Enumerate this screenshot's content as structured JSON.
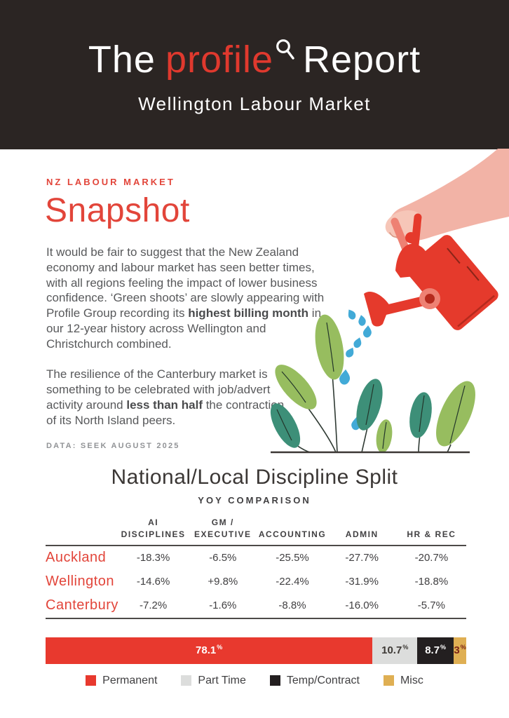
{
  "header": {
    "title_pre": "The",
    "brand": "profile",
    "title_post": "Report",
    "subtitle": "Wellington Labour Market"
  },
  "snapshot": {
    "kicker": "NZ LABOUR MARKET",
    "title": "Snapshot",
    "para1": {
      "pre": "It would be fair to suggest that the New Zealand economy and labour market has seen better times, with all regions feeling the impact of lower business confidence. ‘Green shoots’ are slowly appearing with Profile Group recording its ",
      "bold": "highest billing month",
      "post": " in our 12-year history across Wellington and Christchurch combined."
    },
    "para2": {
      "pre": "The resilience of the Canterbury market is something to be celebrated with job/advert activity around ",
      "bold": "less than half",
      "post": " the contraction of its North Island peers."
    },
    "source": "DATA: SEEK AUGUST 2025"
  },
  "illustration": {
    "name": "hand-watering-seedlings",
    "palette": {
      "arm_pink": "#f2b3a6",
      "hand_pink": "#f6c6b8",
      "can_red": "#e53a2c",
      "can_salmon": "#ee8173",
      "drop_blue": "#42aad7",
      "leaf_light_green": "#97bd5f",
      "leaf_teal": "#3d8f78"
    }
  },
  "chart_data": [
    {
      "type": "table",
      "title": "National/Local Discipline Split",
      "subtitle": "YOY COMPARISON",
      "columns": [
        "AI\nDISCIPLINES",
        "GM /\nEXECUTIVE",
        "ACCOUNTING",
        "ADMIN",
        "HR & REC"
      ],
      "rows": [
        {
          "region": "Auckland",
          "values": [
            "-18.3%",
            "-6.5%",
            "-25.5%",
            "-27.7%",
            "-20.7%"
          ]
        },
        {
          "region": "Wellington",
          "values": [
            "-14.6%",
            "+9.8%",
            "-22.4%",
            "-31.9%",
            "-18.8%"
          ]
        },
        {
          "region": "Canterbury",
          "values": [
            "-7.2%",
            "-1.6%",
            "-8.8%",
            "-16.0%",
            "-5.7%"
          ]
        }
      ]
    },
    {
      "type": "bar",
      "subtype": "stacked-horizontal",
      "unit": "%",
      "xlim": [
        0,
        100
      ],
      "segments": [
        {
          "name": "Permanent",
          "label": "78.1",
          "value": 78.1,
          "color": "#e8392e",
          "text_color": "#ffffff"
        },
        {
          "name": "Part Time",
          "label": "10.7",
          "value": 10.7,
          "color": "#dcdddc",
          "text_color": "#3d3935"
        },
        {
          "name": "Temp/Contract",
          "label": "8.7",
          "value": 8.7,
          "color": "#231f20",
          "text_color": "#ffffff"
        },
        {
          "name": "Misc",
          "label": "3",
          "value": 3.0,
          "color": "#dfaf53",
          "text_color": "#7b2417"
        }
      ],
      "legend": [
        {
          "label": "Permanent",
          "color": "#e8392e"
        },
        {
          "label": "Part Time",
          "color": "#dcdddc"
        },
        {
          "label": "Temp/Contract",
          "color": "#231f20"
        },
        {
          "label": "Misc",
          "color": "#dfaf53"
        }
      ],
      "legend_position": "bottom"
    }
  ],
  "colors": {
    "banner": "#2b2523",
    "accent_red": "#e2453a",
    "body_text": "#58595b",
    "table_text": "#414042"
  }
}
